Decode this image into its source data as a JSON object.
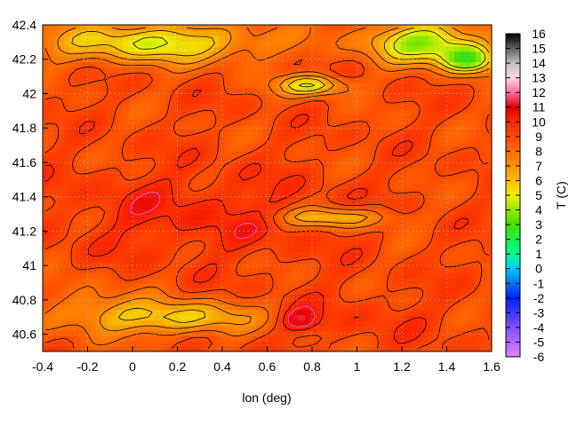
{
  "chart_data": {
    "type": "heatmap",
    "title": "",
    "xlabel": "lon (deg)",
    "ylabel": "",
    "colorbar_label": "T (C)",
    "xlim": [
      -0.4,
      1.6
    ],
    "ylim": [
      40.5,
      42.4
    ],
    "x_ticks": [
      "-0.4",
      "-0.2",
      "0",
      "0.2",
      "0.4",
      "0.6",
      "0.8",
      "1",
      "1.2",
      "1.4",
      "1.6"
    ],
    "y_ticks": [
      "40.6",
      "40.8",
      "41",
      "41.2",
      "41.4",
      "41.6",
      "41.8",
      "42",
      "42.2",
      "42.4"
    ],
    "colorbar_range": [
      -6,
      16
    ],
    "colorbar_ticks": [
      "16",
      "15",
      "14",
      "13",
      "12",
      "11",
      "10",
      "9",
      "8",
      "7",
      "6",
      "5",
      "4",
      "3",
      "2",
      "1",
      "0",
      "-1",
      "-2",
      "-3",
      "-4",
      "-5",
      "-6"
    ],
    "grid": true,
    "contour_lines": true,
    "colormap": [
      {
        "t": -6,
        "color": "#e080ff"
      },
      {
        "t": -4,
        "color": "#8050ff"
      },
      {
        "t": -2,
        "color": "#0020ff"
      },
      {
        "t": 0,
        "color": "#00c8ff"
      },
      {
        "t": 1,
        "color": "#00ff90"
      },
      {
        "t": 3,
        "color": "#40e000"
      },
      {
        "t": 5,
        "color": "#f0f000"
      },
      {
        "t": 7,
        "color": "#ff9000"
      },
      {
        "t": 10,
        "color": "#ff2800"
      },
      {
        "t": 11,
        "color": "#e00000"
      },
      {
        "t": 12,
        "color": "#ff70a0"
      },
      {
        "t": 13,
        "color": "#ffd8e8"
      },
      {
        "t": 14,
        "color": "#c0c0c0"
      },
      {
        "t": 16,
        "color": "#000000"
      }
    ]
  }
}
